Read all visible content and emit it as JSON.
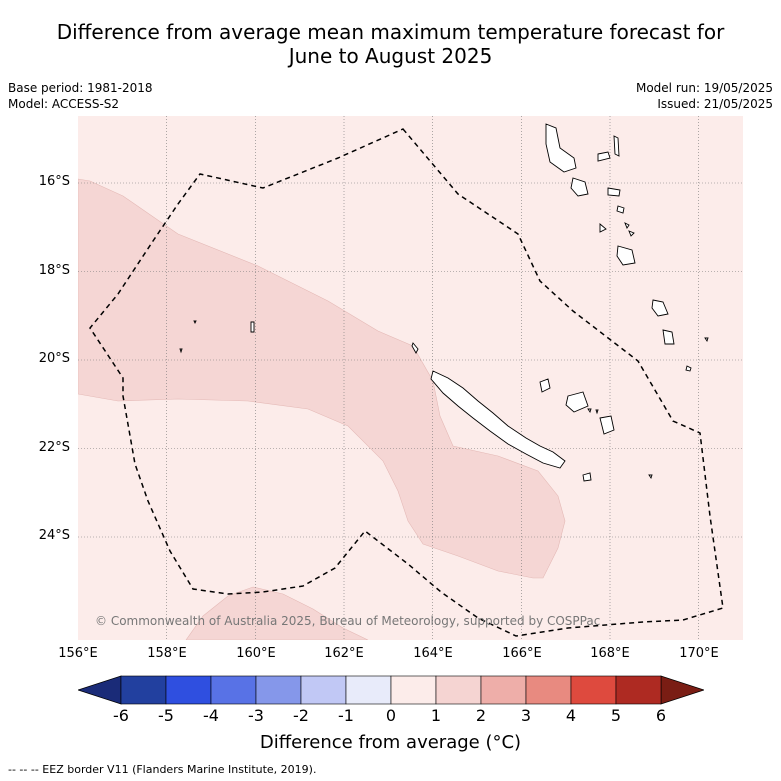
{
  "title_line1": "Difference from average mean maximum temperature forecast for",
  "title_line2": "June to August 2025",
  "base_period": "Base period: 1981-2018",
  "model": "Model: ACCESS-S2",
  "model_run": "Model run: 19/05/2025",
  "issued": "Issued: 21/05/2025",
  "credit": "© Commonwealth of Australia 2025, Bureau of Meteorology, supported by COSPPac",
  "lat_labels": [
    "16°S",
    "18°S",
    "20°S",
    "22°S",
    "24°S"
  ],
  "lon_labels": [
    "156°E",
    "158°E",
    "160°E",
    "162°E",
    "164°E",
    "166°E",
    "168°E",
    "170°E"
  ],
  "colorbar": {
    "ticks": [
      "-6",
      "-5",
      "-4",
      "-3",
      "-2",
      "-1",
      "0",
      "1",
      "2",
      "3",
      "4",
      "5",
      "6"
    ],
    "colors": [
      "#22409f",
      "#2f4fe0",
      "#5872e6",
      "#8597ea",
      "#c1c8f5",
      "#e8ebfa",
      "#fcecea",
      "#f5d4d2",
      "#eeaea9",
      "#e88a80",
      "#de4a3e",
      "#ae2a22"
    ],
    "under_color": "#1a2b78",
    "over_color": "#7a1d14",
    "title": "Difference from average (°C)"
  },
  "legend_footer": "-- -- -- EEZ border V11 (Flanders Marine Institute, 2019).",
  "colors": {
    "anomaly_0_1": "#fcecea",
    "anomaly_1_2": "#f5d6d4",
    "eez_border": "#000000"
  }
}
